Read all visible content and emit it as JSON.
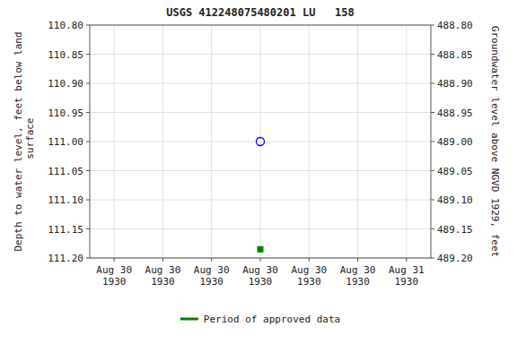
{
  "chart_data": {
    "type": "scatter",
    "title": "USGS 412248075480201 LU   158",
    "y_label": "Depth to water level, feet below land\n surface",
    "y2_label": "Groundwater level above NGVD 1929, feet",
    "categories": [
      "Aug 30\n1930",
      "Aug 30\n1930",
      "Aug 30\n1930",
      "Aug 30\n1930",
      "Aug 30\n1930",
      "Aug 30\n1930",
      "Aug 31\n1930"
    ],
    "series": [
      {
        "color": "#0000ff",
        "marker": "circle",
        "values": [
          null,
          null,
          null,
          111.0,
          null,
          null,
          null
        ]
      },
      {
        "name": "Period of approved data",
        "color": "#008000",
        "marker": "square",
        "values": [
          null,
          null,
          null,
          111.185,
          null,
          null,
          null
        ]
      }
    ],
    "ylim": [
      111.2,
      110.8
    ],
    "yticks": [
      {
        "value": 110.8,
        "label": "110.80"
      },
      110.85,
      {
        "value": 110.9,
        "label": "110.90"
      },
      110.95,
      {
        "value": 111.0,
        "label": "111.00"
      },
      111.05,
      {
        "value": 111.1,
        "label": "111.10"
      },
      111.15,
      {
        "value": 111.2,
        "label": "111.20"
      }
    ],
    "y2lim": [
      489.2,
      488.8
    ],
    "y2ticks": [
      {
        "value": 489.2,
        "label": "489.20"
      },
      489.15,
      {
        "value": 489.1,
        "label": "489.10"
      },
      489.05,
      {
        "value": 489.0,
        "label": "489.00"
      },
      488.95,
      {
        "value": 488.9,
        "label": "488.90"
      },
      488.85,
      {
        "value": 488.8,
        "label": "488.80"
      }
    ],
    "grid": true,
    "legend": "bottom"
  }
}
